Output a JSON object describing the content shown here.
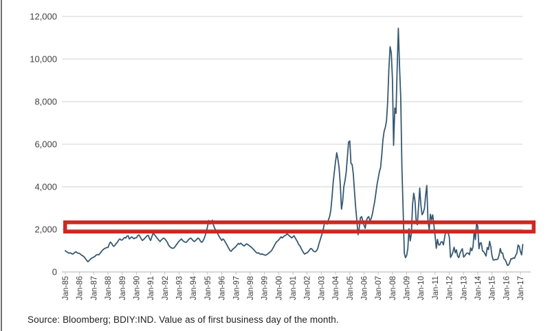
{
  "source_note": "Source: Bloomberg; BDIY:IND. Value as of first business day of the month.",
  "colors": {
    "line": "#355872",
    "grid": "#d9d9d9",
    "axis": "#bfbfbf",
    "tick": "#bfbfbf",
    "label": "#404040",
    "band_red": "#ce2824",
    "panel_border": "#6f6f6f",
    "background": "#ffffff"
  },
  "chart_data": {
    "type": "line",
    "title": "",
    "legend": false,
    "grid": true,
    "y_axis": {
      "min": 0,
      "max": 12000,
      "tick_interval": 2000,
      "tick_labels": [
        "0",
        "2,000",
        "4,000",
        "6,000",
        "8,000",
        "10,000",
        "12,000"
      ]
    },
    "x_axis": {
      "unit": "month",
      "start": "Jan-85",
      "end": "Mar-17",
      "tick_labels": [
        "Jan-85",
        "Jan-86",
        "Jan-87",
        "Jan-88",
        "Jan-89",
        "Jan-90",
        "Jan-91",
        "Jan-92",
        "Jan-93",
        "Jan-94",
        "Jan-95",
        "Jan-96",
        "Jan-97",
        "Jan-98",
        "Jan-99",
        "Jan-00",
        "Jan-01",
        "Jan-02",
        "Jan-03",
        "Jan-04",
        "Jan-05",
        "Jan-06",
        "Jan-07",
        "Jan-08",
        "Jan-09",
        "Jan-10",
        "Jan-11",
        "Jan-12",
        "Jan-13",
        "Jan-14",
        "Jan-15",
        "Jan-16",
        "Jan-17"
      ]
    },
    "annotation_band": {
      "shape": "hollow-rectangle",
      "approx_value": 2000,
      "color": "#ce2824"
    },
    "series": [
      {
        "name": "BDIY:IND",
        "color": "#355872",
        "first_month": "Jan-85",
        "values_monthly": [
          1000,
          950,
          920,
          880,
          900,
          870,
          840,
          860,
          920,
          950,
          900,
          880,
          870,
          820,
          780,
          750,
          700,
          620,
          550,
          480,
          530,
          590,
          640,
          670,
          700,
          730,
          790,
          820,
          800,
          850,
          920,
          1000,
          1050,
          1100,
          1120,
          1150,
          1150,
          1300,
          1400,
          1350,
          1250,
          1200,
          1260,
          1340,
          1400,
          1500,
          1550,
          1500,
          1500,
          1560,
          1620,
          1590,
          1680,
          1700,
          1550,
          1600,
          1650,
          1600,
          1560,
          1600,
          1600,
          1700,
          1740,
          1660,
          1560,
          1480,
          1520,
          1580,
          1640,
          1700,
          1720,
          1560,
          1480,
          1650,
          1810,
          1770,
          1700,
          1620,
          1550,
          1480,
          1430,
          1500,
          1550,
          1590,
          1550,
          1480,
          1400,
          1270,
          1200,
          1150,
          1120,
          1105,
          1150,
          1220,
          1300,
          1380,
          1450,
          1500,
          1550,
          1480,
          1430,
          1400,
          1390,
          1450,
          1520,
          1560,
          1590,
          1520,
          1460,
          1430,
          1480,
          1540,
          1590,
          1550,
          1450,
          1390,
          1450,
          1550,
          1700,
          1900,
          2150,
          2420,
          2250,
          2300,
          2430,
          2200,
          2050,
          1950,
          1850,
          1750,
          1650,
          1560,
          1480,
          1550,
          1500,
          1400,
          1300,
          1200,
          1100,
          1000,
          970,
          1050,
          1100,
          1150,
          1200,
          1270,
          1340,
          1300,
          1350,
          1300,
          1250,
          1220,
          1280,
          1320,
          1280,
          1250,
          1200,
          1160,
          1100,
          1050,
          980,
          920,
          880,
          900,
          850,
          830,
          850,
          820,
          800,
          780,
          820,
          850,
          900,
          950,
          1000,
          1100,
          1200,
          1300,
          1400,
          1450,
          1500,
          1570,
          1650,
          1600,
          1650,
          1700,
          1720,
          1790,
          1750,
          1700,
          1650,
          1600,
          1650,
          1700,
          1600,
          1500,
          1400,
          1280,
          1225,
          1100,
          1000,
          900,
          840,
          880,
          900,
          950,
          1030,
          1100,
          1080,
          1000,
          960,
          950,
          1000,
          1100,
          1320,
          1500,
          1680,
          1850,
          2100,
          2400,
          2300,
          2250,
          2450,
          2600,
          2900,
          3500,
          4200,
          4700,
          5200,
          5600,
          5300,
          4900,
          4100,
          2950,
          3300,
          4000,
          4300,
          4700,
          5400,
          6100,
          6150,
          5100,
          5050,
          4600,
          3800,
          3000,
          2400,
          1750,
          2050,
          2550,
          2600,
          2400,
          2200,
          2050,
          2400,
          2550,
          2600,
          2400,
          2500,
          2700,
          3000,
          3300,
          3700,
          4100,
          4400,
          4700,
          4900,
          5500,
          6200,
          6600,
          6800,
          7100,
          8000,
          9500,
          10580,
          10300,
          9100,
          5950,
          7700,
          7450,
          9600,
          11450,
          9600,
          8200,
          4900,
          3000,
          880,
          670,
          770,
          1100,
          2030,
          1460,
          1800,
          3160,
          3700,
          3350,
          2420,
          2220,
          3020,
          3940,
          3140,
          2690,
          2780,
          2990,
          3600,
          4060,
          2410,
          1980,
          2710,
          2450,
          2680,
          2170,
          1690,
          1110,
          1530,
          1270,
          1270,
          1410,
          1420,
          1270,
          1620,
          1920,
          1820,
          1870,
          1620,
          680,
          780,
          930,
          1160,
          900,
          1040,
          750,
          670,
          880,
          1000,
          1090,
          700,
          750,
          840,
          890,
          880,
          810,
          1130,
          1000,
          1170,
          1950,
          1520,
          2300,
          2150,
          1090,
          1360,
          1360,
          990,
          950,
          850,
          750,
          1150,
          1050,
          1440,
          1190,
          770,
          560,
          560,
          590,
          580,
          610,
          800,
          1100,
          890,
          890,
          630,
          580,
          470,
          310,
          330,
          450,
          620,
          610,
          660,
          640,
          780,
          880,
          1260,
          1200,
          950,
          800,
          1290
        ]
      }
    ]
  }
}
